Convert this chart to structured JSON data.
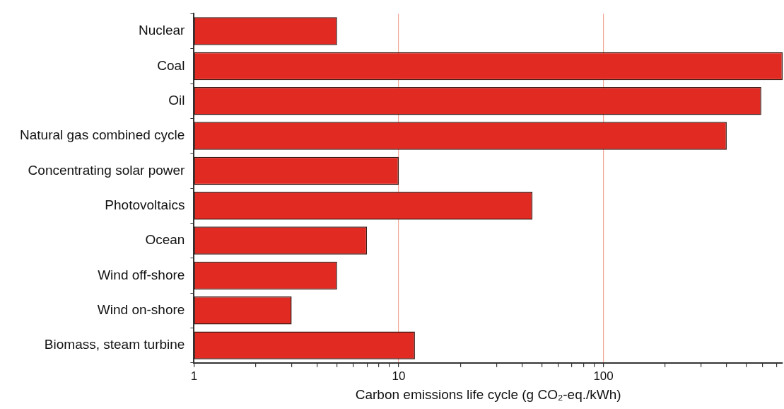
{
  "chart_data": {
    "type": "bar",
    "orientation": "horizontal",
    "log": "x",
    "grid": "x",
    "xlabel": "Carbon emissions life cycle (g CO₂-eq./kWh)",
    "categories": [
      "Nuclear",
      "Coal",
      "Oil",
      "Natural gas combined cycle",
      "Concentrating solar power",
      "Photovoltaics",
      "Ocean",
      "Wind off-shore",
      "Wind on-shore",
      "Biomass, steam turbine"
    ],
    "values": [
      5,
      750,
      590,
      400,
      10,
      45,
      7,
      5,
      3,
      12
    ],
    "color": "#e12a22",
    "xlim": [
      1,
      750
    ],
    "xticks": [
      1,
      {
        "value": 2,
        "label": null
      },
      {
        "value": 3,
        "label": null
      },
      {
        "value": 4,
        "label": null
      },
      {
        "value": 5,
        "label": null
      },
      {
        "value": 6,
        "label": null
      },
      {
        "value": 7,
        "label": null
      },
      {
        "value": 8,
        "label": null
      },
      {
        "value": 9,
        "label": null
      },
      10,
      {
        "value": 20,
        "label": null
      },
      {
        "value": 30,
        "label": null
      },
      {
        "value": 40,
        "label": null
      },
      {
        "value": 50,
        "label": null
      },
      {
        "value": 60,
        "label": null
      },
      {
        "value": 70,
        "label": null
      },
      {
        "value": 80,
        "label": null
      },
      {
        "value": 90,
        "label": null
      },
      100,
      {
        "value": 200,
        "label": null
      },
      {
        "value": 300,
        "label": null
      },
      {
        "value": 400,
        "label": null
      },
      {
        "value": 500,
        "label": null
      },
      {
        "value": 600,
        "label": null
      },
      {
        "value": 700,
        "label": null
      }
    ]
  }
}
